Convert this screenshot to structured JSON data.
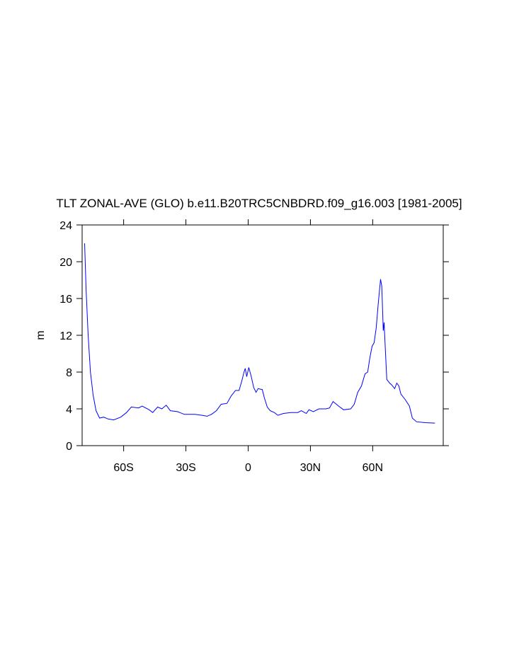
{
  "chart_data": {
    "type": "line",
    "title": "TLT ZONAL-AVE (GLO) b.e11.B20TRC5CNBDRD.f09_g16.003 [1981-2005]",
    "y_label": "m",
    "x": [
      -78.8,
      -78.1,
      -77.1,
      -76,
      -74.7,
      -73.3,
      -71.6,
      -69.6,
      -67.5,
      -64.8,
      -61.4,
      -58.6,
      -56.3,
      -52.8,
      -51.1,
      -47.7,
      -46,
      -43.6,
      -41.6,
      -39.5,
      -37.5,
      -34.1,
      -30.7,
      -25.6,
      -22.2,
      -19.8,
      -17.7,
      -15.3,
      -13,
      -10.2,
      -8.2,
      -6.1,
      -4.4,
      -3.1,
      -2,
      -1.4,
      -0.7,
      0.3,
      1.4,
      2.7,
      3.8,
      4.8,
      6.8,
      7.8,
      9.2,
      10.6,
      12.6,
      14.3,
      17,
      20.5,
      23.9,
      25.6,
      28,
      29.3,
      31.4,
      34.1,
      37.5,
      39.2,
      40.9,
      43.6,
      46,
      49.4,
      51.1,
      52.8,
      54.6,
      56.3,
      57.6,
      58.6,
      59.7,
      60.7,
      61.7,
      62.7,
      63.8,
      64.4,
      65.1,
      65.5,
      66.1,
      66.8,
      68.2,
      69.2,
      70.6,
      71.6,
      72.6,
      73.6,
      75.7,
      77.7,
      79.1,
      81.1,
      85.2,
      90
    ],
    "series": [
      {
        "name": "TLT",
        "color": "#0000ff",
        "values": [
          22,
          17,
          12,
          8,
          5.5,
          3.8,
          3.0,
          3.1,
          2.9,
          2.8,
          3.1,
          3.6,
          4.2,
          4.1,
          4.3,
          3.9,
          3.6,
          4.2,
          4.0,
          4.4,
          3.8,
          3.7,
          3.4,
          3.4,
          3.3,
          3.2,
          3.4,
          3.8,
          4.5,
          4.6,
          5.4,
          6.0,
          6.0,
          7.0,
          8.0,
          8.4,
          7.5,
          8.5,
          7.6,
          6.3,
          5.8,
          6.2,
          6.1,
          5.2,
          4.2,
          3.8,
          3.6,
          3.3,
          3.5,
          3.6,
          3.6,
          3.8,
          3.5,
          3.9,
          3.7,
          4.0,
          4.0,
          4.1,
          4.8,
          4.3,
          3.9,
          4.0,
          4.5,
          5.8,
          6.5,
          7.8,
          8.0,
          9.5,
          10.8,
          11.2,
          12.8,
          15.5,
          18.1,
          17.3,
          12.5,
          13.4,
          10.5,
          7.2,
          6.8,
          6.6,
          6.2,
          6.8,
          6.5,
          5.6,
          5.0,
          4.3,
          3.0,
          2.6,
          2.5,
          2.45
        ]
      }
    ],
    "xlim": [
      -80,
      94
    ],
    "xticks": [
      {
        "value": -60,
        "label": "60S"
      },
      {
        "value": -30,
        "label": "30S"
      },
      0,
      {
        "value": 30,
        "label": "30N"
      },
      {
        "value": 60,
        "label": "60N"
      }
    ],
    "ylim": [
      0,
      24
    ],
    "yticks": [
      0,
      4,
      8,
      12,
      16,
      20,
      24
    ]
  }
}
